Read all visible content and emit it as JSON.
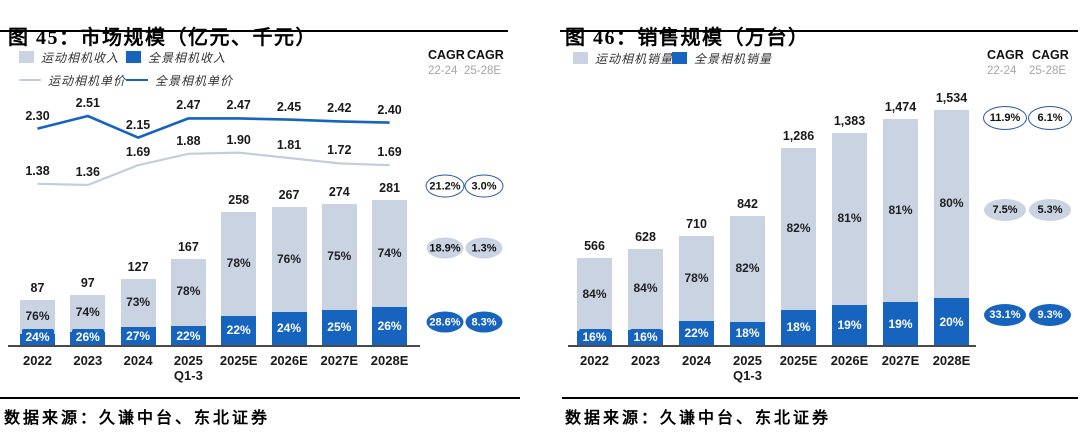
{
  "colors": {
    "blue": "#1664BE",
    "light": "#C9D3E2",
    "light_line": "#C2CDDE"
  },
  "left_panel": {
    "title": "图 45：市场规模（亿元、千元）",
    "legend": {
      "box_light": "运动相机收入",
      "box_blue": "全景相机收入",
      "line_light": "运动相机单价",
      "line_blue": "全景相机单价"
    },
    "cagr_header": {
      "c1": "CAGR",
      "c2": "CAGR",
      "s1": "22-24",
      "s2": "25-28E"
    },
    "source": "数据来源：久谦中台、东北证券"
  },
  "right_panel": {
    "title": "图 46：销售规模（万台）",
    "legend": {
      "box_light": "运动相机销量",
      "box_blue": "全景相机销量"
    },
    "cagr_header": {
      "c1": "CAGR",
      "c2": "CAGR",
      "s1": "22-24",
      "s2": "25-28E"
    },
    "source": "数据来源：久谦中台、东北证券"
  },
  "chart_data": [
    {
      "id": "fig45",
      "type": "bar",
      "subtype": "stacked-bars-with-lines",
      "title": "图 45：市场规模（亿元、千元）",
      "categories": [
        "2022",
        "2023",
        "2024",
        "2025 Q1-3",
        "2025E",
        "2026E",
        "2027E",
        "2028E"
      ],
      "totals": [
        87,
        97,
        127,
        167,
        258,
        267,
        274,
        281
      ],
      "total_labels": [
        "87",
        "97",
        "127",
        "167",
        "258",
        "267",
        "274",
        "281"
      ],
      "bar_series": [
        {
          "name": "运动相机收入",
          "color": "#C9D3E2",
          "pct": [
            76,
            74,
            73,
            78,
            78,
            76,
            75,
            74
          ]
        },
        {
          "name": "全景相机收入",
          "color": "#1664BE",
          "pct": [
            24,
            26,
            27,
            22,
            22,
            24,
            25,
            26
          ]
        }
      ],
      "line_series": [
        {
          "name": "运动相机单价",
          "color": "#C2CDDE",
          "width": 2.2,
          "values": [
            1.38,
            1.36,
            1.69,
            1.88,
            1.9,
            1.81,
            1.72,
            1.69
          ],
          "labels": [
            "1.38",
            "1.36",
            "1.69",
            "1.88",
            "1.90",
            "1.81",
            "1.72",
            "1.69"
          ]
        },
        {
          "name": "全景相机单价",
          "color": "#1664BE",
          "width": 2.6,
          "values": [
            2.3,
            2.51,
            2.15,
            2.47,
            2.47,
            2.45,
            2.42,
            2.4
          ],
          "labels": [
            "2.30",
            "2.51",
            "2.15",
            "2.47",
            "2.47",
            "2.45",
            "2.42",
            "2.40"
          ]
        }
      ],
      "cagr_columns": [
        "22-24",
        "25-28E"
      ],
      "cagr_rows": [
        {
          "applies_to": "total",
          "style": "outline",
          "values": [
            "21.2%",
            "3.0%"
          ]
        },
        {
          "applies_to": "运动相机收入",
          "style": "light",
          "values": [
            "18.9%",
            "1.3%"
          ]
        },
        {
          "applies_to": "全景相机收入",
          "style": "blue",
          "values": [
            "28.6%",
            "8.3%"
          ]
        }
      ],
      "ylim_bars": [
        0,
        300
      ],
      "ylim_lines": [
        0,
        3
      ],
      "grid": false,
      "legend_position": "top-left"
    },
    {
      "id": "fig46",
      "type": "bar",
      "subtype": "stacked-bars",
      "title": "图 46：销售规模（万台）",
      "categories": [
        "2022",
        "2023",
        "2024",
        "2025 Q1-3",
        "2025E",
        "2026E",
        "2027E",
        "2028E"
      ],
      "totals": [
        566,
        628,
        710,
        842,
        1286,
        1383,
        1474,
        1534
      ],
      "total_labels": [
        "566",
        "628",
        "710",
        "842",
        "1,286",
        "1,383",
        "1,474",
        "1,534"
      ],
      "bar_series": [
        {
          "name": "运动相机销量",
          "color": "#C9D3E2",
          "pct": [
            84,
            84,
            78,
            82,
            82,
            81,
            81,
            80
          ]
        },
        {
          "name": "全景相机销量",
          "color": "#1664BE",
          "pct": [
            16,
            16,
            22,
            18,
            18,
            19,
            19,
            20
          ]
        }
      ],
      "cagr_columns": [
        "22-24",
        "25-28E"
      ],
      "cagr_rows": [
        {
          "applies_to": "total",
          "style": "outline",
          "values": [
            "11.9%",
            "6.1%"
          ]
        },
        {
          "applies_to": "运动相机销量",
          "style": "light",
          "values": [
            "7.5%",
            "5.3%"
          ]
        },
        {
          "applies_to": "全景相机销量",
          "style": "blue",
          "values": [
            "33.1%",
            "9.3%"
          ]
        }
      ],
      "ylim_bars": [
        0,
        1700
      ],
      "grid": false,
      "legend_position": "top-left"
    }
  ]
}
